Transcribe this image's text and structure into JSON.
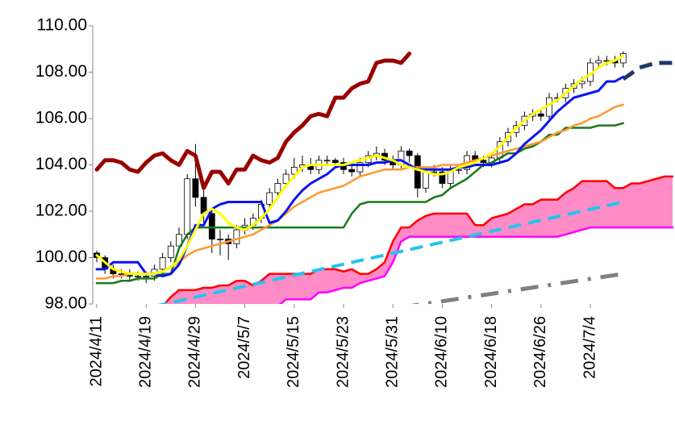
{
  "chart_data": {
    "type": "candlestick",
    "categories": [
      "2024/4/11",
      null,
      null,
      null,
      null,
      null,
      "2024/4/19",
      null,
      null,
      null,
      null,
      null,
      "2024/4/29",
      null,
      null,
      null,
      null,
      null,
      "2024/5/7",
      null,
      null,
      null,
      null,
      null,
      "2024/5/15",
      null,
      null,
      null,
      null,
      null,
      "2024/5/23",
      null,
      null,
      null,
      null,
      null,
      "2024/5/31",
      null,
      null,
      null,
      null,
      null,
      "2024/6/10",
      null,
      null,
      null,
      null,
      null,
      "2024/6/18",
      null,
      null,
      null,
      null,
      null,
      "2024/6/26",
      null,
      null,
      null,
      null,
      null,
      "2024/7/4",
      null,
      null,
      null,
      null,
      null,
      null,
      null,
      null,
      null,
      null
    ],
    "ylim": [
      98,
      110
    ],
    "yticks": [
      {
        "value": 98,
        "label": "98.00"
      },
      {
        "value": 100,
        "label": "100.00"
      },
      {
        "value": 102,
        "label": "102.00"
      },
      {
        "value": 104,
        "label": "104.00"
      },
      {
        "value": 106,
        "label": "106.00"
      },
      {
        "value": 108,
        "label": "108.00"
      },
      {
        "value": 110,
        "label": "110.00"
      }
    ],
    "candles": {
      "up_color": "#ffffff",
      "down_color": "#000000",
      "open": [
        100.2,
        100.0,
        99.5,
        99.3,
        99.3,
        99.2,
        99.2,
        99.2,
        99.5,
        100.0,
        100.5,
        101.0,
        103.4,
        102.6,
        101.9,
        100.8,
        100.8,
        100.6,
        101.2,
        101.4,
        101.7,
        102.3,
        102.8,
        103.2,
        103.6,
        103.9,
        104.0,
        103.8,
        104.2,
        104.2,
        104.1,
        103.8,
        103.7,
        104.1,
        104.4,
        104.5,
        104.2,
        104.0,
        104.6,
        104.4,
        103.0,
        103.7,
        103.7,
        103.2,
        103.8,
        103.8,
        104.4,
        104.2,
        104.1,
        104.3,
        105.0,
        105.4,
        105.7,
        106.1,
        106.2,
        106.1,
        106.9,
        106.9,
        107.3,
        107.5,
        107.6,
        108.4,
        108.5,
        108.5,
        108.4,
        null,
        null,
        null,
        null,
        null,
        null
      ],
      "high": [
        100.3,
        100.1,
        99.7,
        99.5,
        99.5,
        99.4,
        99.4,
        99.7,
        100.2,
        100.7,
        101.3,
        103.6,
        104.9,
        102.9,
        102.1,
        101.2,
        101.0,
        101.4,
        101.7,
        101.9,
        102.5,
        103.0,
        103.4,
        103.8,
        104.3,
        104.4,
        104.3,
        104.4,
        104.4,
        104.3,
        104.3,
        104.0,
        104.3,
        104.6,
        104.8,
        104.7,
        104.4,
        104.8,
        104.7,
        104.5,
        103.9,
        104.0,
        103.9,
        104.0,
        104.0,
        104.6,
        104.6,
        104.4,
        104.5,
        105.2,
        105.6,
        105.9,
        106.3,
        106.4,
        106.4,
        107.1,
        107.1,
        107.5,
        107.7,
        107.8,
        108.6,
        108.7,
        108.7,
        108.7,
        108.9,
        null,
        null,
        null,
        null,
        null,
        null
      ],
      "low": [
        99.8,
        99.3,
        99.1,
        99.1,
        99.0,
        99.0,
        98.9,
        99.0,
        99.3,
        99.8,
        100.3,
        100.8,
        102.2,
        101.5,
        100.2,
        100.1,
        99.9,
        100.4,
        101.0,
        101.2,
        101.5,
        102.1,
        102.6,
        103.0,
        103.4,
        103.7,
        103.6,
        103.6,
        104.0,
        103.9,
        103.6,
        103.5,
        103.5,
        103.9,
        104.2,
        104.0,
        103.8,
        103.8,
        104.1,
        102.6,
        102.8,
        103.5,
        103.0,
        103.0,
        103.6,
        103.6,
        104.0,
        103.9,
        103.9,
        104.1,
        104.8,
        105.2,
        105.5,
        105.9,
        105.9,
        105.9,
        106.7,
        106.7,
        107.1,
        107.3,
        107.4,
        108.2,
        108.3,
        108.2,
        108.2,
        null,
        null,
        null,
        null,
        null,
        null
      ],
      "close": [
        100.0,
        99.5,
        99.3,
        99.3,
        99.2,
        99.2,
        99.2,
        99.5,
        100.0,
        100.5,
        101.0,
        103.4,
        102.6,
        101.9,
        100.8,
        100.8,
        100.6,
        101.2,
        101.4,
        101.7,
        102.3,
        102.8,
        103.2,
        103.6,
        103.9,
        104.0,
        103.8,
        104.2,
        104.2,
        104.1,
        103.8,
        103.7,
        104.1,
        104.4,
        104.5,
        104.2,
        104.0,
        104.6,
        104.4,
        103.0,
        103.7,
        103.7,
        103.2,
        103.8,
        103.8,
        104.4,
        104.2,
        104.1,
        104.3,
        105.0,
        105.4,
        105.7,
        106.1,
        106.2,
        106.1,
        106.9,
        106.9,
        107.3,
        107.5,
        107.6,
        108.4,
        108.5,
        108.5,
        108.4,
        108.8,
        null,
        null,
        null,
        null,
        null,
        null
      ]
    },
    "cloud": {
      "color": "#ff8cc6",
      "span_a": {
        "color": "#ff0000",
        "values": [
          null,
          null,
          null,
          null,
          null,
          null,
          null,
          null,
          97.9,
          98.3,
          98.6,
          98.6,
          98.6,
          98.7,
          98.7,
          98.8,
          98.8,
          99.0,
          99.0,
          98.8,
          99.0,
          99.3,
          99.3,
          99.3,
          99.3,
          99.3,
          99.3,
          99.5,
          99.5,
          99.5,
          99.4,
          99.5,
          99.3,
          99.3,
          99.5,
          99.8,
          100.7,
          101.3,
          101.3,
          101.6,
          101.8,
          101.9,
          101.9,
          101.9,
          101.9,
          101.9,
          101.4,
          101.4,
          101.7,
          101.8,
          101.9,
          102.1,
          102.3,
          102.3,
          102.5,
          102.5,
          102.5,
          102.8,
          103.0,
          103.3,
          103.3,
          103.3,
          103.3,
          103.0,
          103.0,
          103.2,
          103.2,
          103.3,
          103.4,
          103.5,
          103.5
        ]
      },
      "span_b": {
        "color": "#ff00ff",
        "values": [
          null,
          null,
          null,
          null,
          null,
          null,
          null,
          null,
          97.5,
          97.5,
          97.5,
          97.5,
          97.5,
          97.5,
          97.5,
          97.5,
          97.5,
          97.5,
          97.5,
          97.5,
          97.9,
          97.9,
          97.9,
          98.2,
          98.2,
          98.2,
          98.2,
          98.5,
          98.5,
          98.6,
          98.7,
          98.7,
          98.9,
          99.0,
          99.1,
          99.2,
          99.8,
          100.7,
          100.9,
          100.9,
          100.9,
          100.9,
          100.9,
          100.9,
          100.9,
          100.9,
          100.9,
          100.9,
          100.9,
          100.9,
          100.9,
          100.9,
          100.9,
          100.9,
          100.9,
          100.9,
          100.9,
          101.0,
          101.1,
          101.2,
          101.3,
          101.3,
          101.3,
          101.3,
          101.3,
          101.3,
          101.3,
          101.3,
          101.3,
          101.3,
          101.3
        ]
      }
    },
    "lines": [
      {
        "color": "#1a7a1a",
        "values": [
          98.9,
          98.9,
          98.9,
          99.0,
          99.0,
          99.1,
          99.1,
          99.1,
          99.3,
          99.3,
          100.4,
          101.0,
          101.3,
          101.3,
          101.3,
          101.3,
          101.3,
          101.3,
          101.3,
          101.3,
          101.3,
          101.3,
          101.3,
          101.3,
          101.3,
          101.3,
          101.3,
          101.3,
          101.3,
          101.3,
          101.3,
          101.9,
          102.3,
          102.4,
          102.4,
          102.4,
          102.4,
          102.4,
          102.4,
          102.4,
          102.4,
          102.6,
          102.7,
          103.0,
          103.2,
          103.4,
          103.7,
          104.0,
          104.1,
          104.3,
          104.5,
          104.5,
          104.7,
          104.8,
          105.0,
          105.3,
          105.3,
          105.6,
          105.6,
          105.6,
          105.6,
          105.7,
          105.7,
          105.7,
          105.8,
          null,
          null,
          null,
          null,
          null,
          null
        ]
      },
      {
        "color": "#ff9a30",
        "values": [
          99.1,
          99.1,
          99.2,
          99.2,
          99.3,
          99.3,
          99.3,
          99.3,
          99.4,
          99.6,
          99.8,
          100.1,
          100.3,
          100.4,
          100.5,
          100.6,
          100.7,
          100.8,
          100.9,
          101.0,
          101.2,
          101.4,
          101.6,
          101.9,
          102.2,
          102.4,
          102.6,
          102.8,
          102.9,
          103.0,
          103.1,
          103.3,
          103.5,
          103.6,
          103.7,
          103.8,
          103.8,
          103.8,
          103.9,
          103.9,
          103.9,
          103.9,
          104.0,
          104.0,
          104.0,
          104.1,
          104.2,
          104.3,
          104.4,
          104.5,
          104.6,
          104.7,
          104.8,
          104.9,
          105.0,
          105.2,
          105.4,
          105.5,
          105.7,
          105.8,
          106.0,
          106.1,
          106.3,
          106.5,
          106.6,
          null,
          null,
          null,
          null,
          null,
          null
        ]
      },
      {
        "color": "#0a14f0",
        "values": [
          99.5,
          99.5,
          99.8,
          99.8,
          99.8,
          99.8,
          99.3,
          99.3,
          99.2,
          99.3,
          99.7,
          100.5,
          101.4,
          101.4,
          102.1,
          102.3,
          102.4,
          102.4,
          102.4,
          102.4,
          102.4,
          101.5,
          101.6,
          102.0,
          102.5,
          102.9,
          103.2,
          103.4,
          103.6,
          103.9,
          104.0,
          104.0,
          104.0,
          104.0,
          104.1,
          104.1,
          104.2,
          104.2,
          104.0,
          103.8,
          103.8,
          103.8,
          103.8,
          103.8,
          103.9,
          103.9,
          104.0,
          104.0,
          104.0,
          104.1,
          104.2,
          104.5,
          104.9,
          105.2,
          105.5,
          105.9,
          106.3,
          106.6,
          106.9,
          107.0,
          107.1,
          107.2,
          107.6,
          107.6,
          107.8,
          null,
          null,
          null,
          null,
          null,
          null
        ]
      },
      {
        "color": "#ffff00",
        "values": [
          100.1,
          99.8,
          99.5,
          99.4,
          99.3,
          99.3,
          99.3,
          99.3,
          99.4,
          99.6,
          99.9,
          100.5,
          101.2,
          101.9,
          102.1,
          101.9,
          101.5,
          101.3,
          101.2,
          101.4,
          101.7,
          102.1,
          102.6,
          103.1,
          103.5,
          103.9,
          104.0,
          104.0,
          104.0,
          104.0,
          104.0,
          104.1,
          104.2,
          104.3,
          104.4,
          104.3,
          104.2,
          104.0,
          103.9,
          103.8,
          103.7,
          103.6,
          103.6,
          103.7,
          103.9,
          104.0,
          104.1,
          104.3,
          104.5,
          104.8,
          105.2,
          105.6,
          105.9,
          106.2,
          106.4,
          106.6,
          106.8,
          107.1,
          107.4,
          107.7,
          107.9,
          108.2,
          108.4,
          108.5,
          108.7,
          null,
          null,
          null,
          null,
          null,
          null
        ]
      },
      {
        "color": "#9a0000",
        "values": [
          103.8,
          104.2,
          104.2,
          104.1,
          103.8,
          103.7,
          104.1,
          104.4,
          104.5,
          104.2,
          104.0,
          104.6,
          104.4,
          103.0,
          103.7,
          103.7,
          103.2,
          103.8,
          103.8,
          104.4,
          104.2,
          104.1,
          104.3,
          105.0,
          105.4,
          105.7,
          106.1,
          106.2,
          106.1,
          106.9,
          106.9,
          107.3,
          107.5,
          107.6,
          108.4,
          108.5,
          108.5,
          108.4,
          108.8,
          null,
          null,
          null,
          null,
          null,
          null,
          null,
          null,
          null,
          null,
          null,
          null,
          null,
          null,
          null,
          null,
          null,
          null,
          null,
          null,
          null,
          null,
          null,
          null,
          null,
          null,
          null,
          null,
          null,
          null,
          null,
          null
        ]
      }
    ],
    "trend_lines": [
      {
        "color": "#22c4ee",
        "dash": "dashed",
        "x": [
          7,
          64
        ],
        "values": [
          97.9,
          102.4
        ]
      },
      {
        "color": "#808080",
        "dash": "dash-dot",
        "x": [
          37,
          64
        ],
        "values": [
          97.85,
          99.3
        ]
      },
      {
        "color": "#1f3864",
        "dash": "dashed",
        "x": [
          64,
          66,
          68,
          70
        ],
        "values": [
          107.7,
          108.2,
          108.4,
          108.4
        ]
      }
    ]
  }
}
